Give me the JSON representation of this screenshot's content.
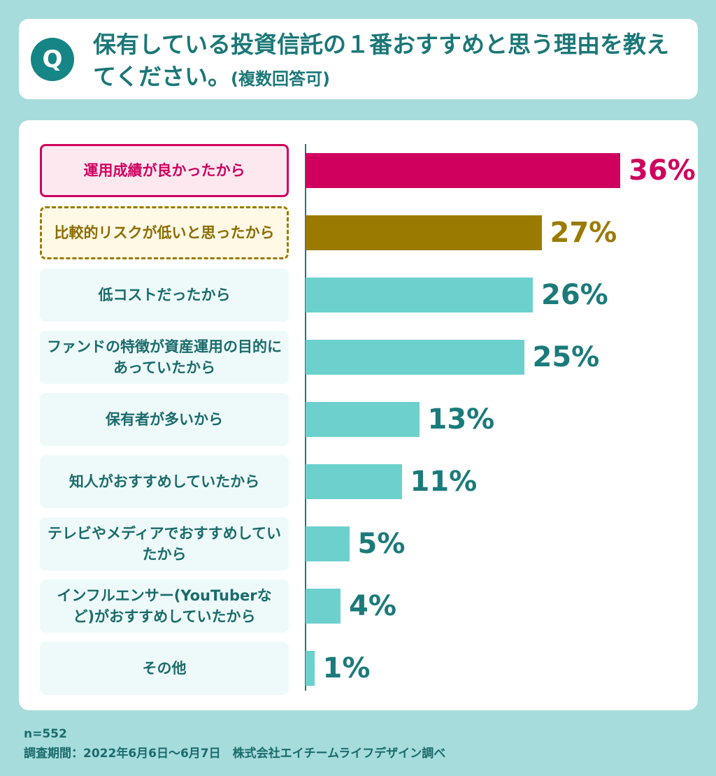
{
  "header": {
    "badge": "Q",
    "title_main": "保有している投資信託の１番おすすめと思う理由を教えてください。",
    "title_sub": "(複数回答可)"
  },
  "chart_data": {
    "type": "bar",
    "orientation": "horizontal",
    "unit": "%",
    "categories": [
      "運用成績が良かったから",
      "比較的リスクが低いと思ったから",
      "低コストだったから",
      "ファンドの特徴が資産運用の目的にあっていたから",
      "保有者が多いから",
      "知人がおすすめしていたから",
      "テレビやメディアでおすすめしていたから",
      "インフルエンサー(YouTuberなど)がおすすめしていたから",
      "その他"
    ],
    "values": [
      36,
      27,
      26,
      25,
      13,
      11,
      5,
      4,
      1
    ],
    "value_labels": [
      "36%",
      "27%",
      "26%",
      "25%",
      "13%",
      "11%",
      "5%",
      "4%",
      "1%"
    ],
    "colors": {
      "highlight_1": "#cf005e",
      "highlight_2": "#9a7b00",
      "default": "#6cd0cd",
      "text": "#1b7a7a"
    }
  },
  "footer": {
    "sample": "n=552",
    "note": "調査期間：2022年6月6日〜6月7日　株式会社エイチームライフデザイン調べ"
  }
}
